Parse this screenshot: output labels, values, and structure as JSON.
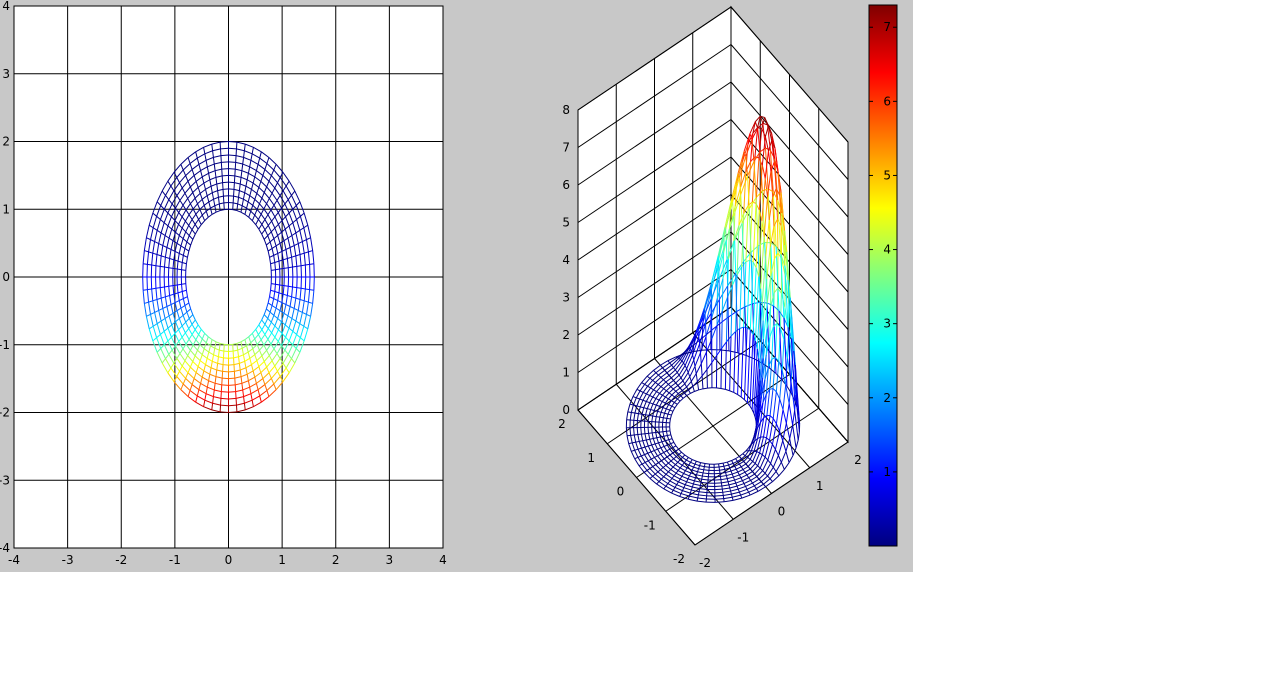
{
  "figure": {
    "background": "#c8c8c8",
    "page_background": "#ffffff"
  },
  "chart_data": [
    {
      "type": "mesh",
      "view": "2d-top",
      "xlim": [
        -4,
        4
      ],
      "ylim": [
        -4,
        4
      ],
      "xticks": [
        "-4",
        "-3",
        "-2",
        "-1",
        "0",
        "1",
        "2",
        "3",
        "4"
      ],
      "yticks": [
        "-4",
        "-3",
        "-2",
        "-1",
        "0",
        "1",
        "2",
        "3",
        "4"
      ],
      "grid": true,
      "surface": {
        "shape": "annulus",
        "center": [
          0,
          0
        ],
        "inner_radius_x": 0.8,
        "inner_radius_y": 1.0,
        "outer_radius_x": 1.6,
        "outer_radius_y": 2.0,
        "radial_lines": 64,
        "rings": 10,
        "color_by": "height"
      }
    },
    {
      "type": "mesh",
      "view": "3d",
      "xlim": [
        -2,
        2
      ],
      "ylim": [
        -2,
        2
      ],
      "zlim": [
        0,
        8
      ],
      "xticks": [
        "-2",
        "-1",
        "0",
        "1",
        "2"
      ],
      "yticks": [
        "-2",
        "-1",
        "0",
        "1",
        "2"
      ],
      "zticks": [
        "0",
        "1",
        "2",
        "3",
        "4",
        "5",
        "6",
        "7",
        "8"
      ],
      "grid": true,
      "z_peak": 7.3,
      "colorbar": {
        "position": "right",
        "range": [
          0,
          7.3
        ],
        "ticks": [
          "1",
          "2",
          "3",
          "4",
          "5",
          "6",
          "7"
        ],
        "colormap": "jet"
      }
    }
  ]
}
